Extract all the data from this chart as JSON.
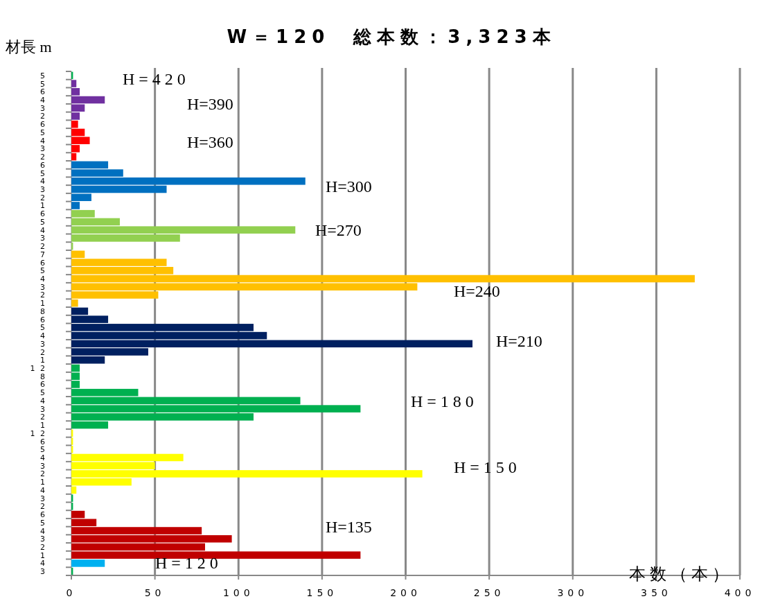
{
  "chart_data": {
    "type": "bar",
    "orientation": "horizontal",
    "title": "W＝120　総本数：3,323本",
    "ylabel": "材長 m",
    "xlabel": "本数（本）",
    "categories": [
      "5",
      "5",
      "6",
      "4",
      "3",
      "2",
      "6",
      "5",
      "4",
      "3",
      "2",
      "6",
      "5",
      "4",
      "3",
      "2",
      "1",
      "6",
      "5",
      "4",
      "3",
      "2",
      "7",
      "6",
      "5",
      "4",
      "3",
      "2",
      "1",
      "8",
      "6",
      "5",
      "4",
      "3",
      "2",
      "1",
      "1 2",
      "8",
      "6",
      "5",
      "4",
      "3",
      "2",
      "1",
      "1 2",
      "6",
      "5",
      "4",
      "3",
      "2",
      "1",
      "4",
      "3",
      "2",
      "6",
      "5",
      "4",
      "3",
      "2",
      "1",
      "4",
      "3"
    ],
    "values": [
      1,
      3,
      5,
      20,
      8,
      5,
      4,
      8,
      11,
      5,
      3,
      22,
      31,
      140,
      57,
      12,
      5,
      14,
      29,
      134,
      65,
      1,
      8,
      57,
      61,
      373,
      207,
      52,
      4,
      10,
      22,
      109,
      117,
      240,
      46,
      20,
      5,
      5,
      5,
      40,
      137,
      173,
      109,
      22,
      1,
      1,
      1,
      67,
      50,
      210,
      36,
      3,
      1,
      1,
      8,
      15,
      78,
      96,
      80,
      173,
      20,
      1
    ],
    "colors": [
      "#00b050",
      "#7030a0",
      "#7030a0",
      "#7030a0",
      "#7030a0",
      "#7030a0",
      "#ff0000",
      "#ff0000",
      "#ff0000",
      "#ff0000",
      "#ff0000",
      "#0070c0",
      "#0070c0",
      "#0070c0",
      "#0070c0",
      "#0070c0",
      "#0070c0",
      "#92d050",
      "#92d050",
      "#92d050",
      "#92d050",
      "#92d050",
      "#ffc000",
      "#ffc000",
      "#ffc000",
      "#ffc000",
      "#ffc000",
      "#ffc000",
      "#ffc000",
      "#002060",
      "#002060",
      "#002060",
      "#002060",
      "#002060",
      "#002060",
      "#002060",
      "#00b050",
      "#00b050",
      "#00b050",
      "#00b050",
      "#00b050",
      "#00b050",
      "#00b050",
      "#00b050",
      "#ffff00",
      "#ffff00",
      "#ffff00",
      "#ffff00",
      "#ffff00",
      "#ffff00",
      "#ffff00",
      "#ffff00",
      "#00b050",
      "#00b050",
      "#c00000",
      "#c00000",
      "#c00000",
      "#c00000",
      "#c00000",
      "#c00000",
      "#00b0f0",
      "#00b050"
    ],
    "xlim": [
      0,
      400
    ],
    "xticks": [
      0,
      50,
      100,
      150,
      200,
      250,
      300,
      350,
      400
    ],
    "grid": "x",
    "annotations": [
      "H = 4 2 0",
      "H=390",
      "H=360",
      "H=300",
      "H=270",
      "H=240",
      "H=210",
      "H = 1 8 0",
      "H = 1 5 0",
      "H=135",
      "H = 1 2 0"
    ]
  }
}
